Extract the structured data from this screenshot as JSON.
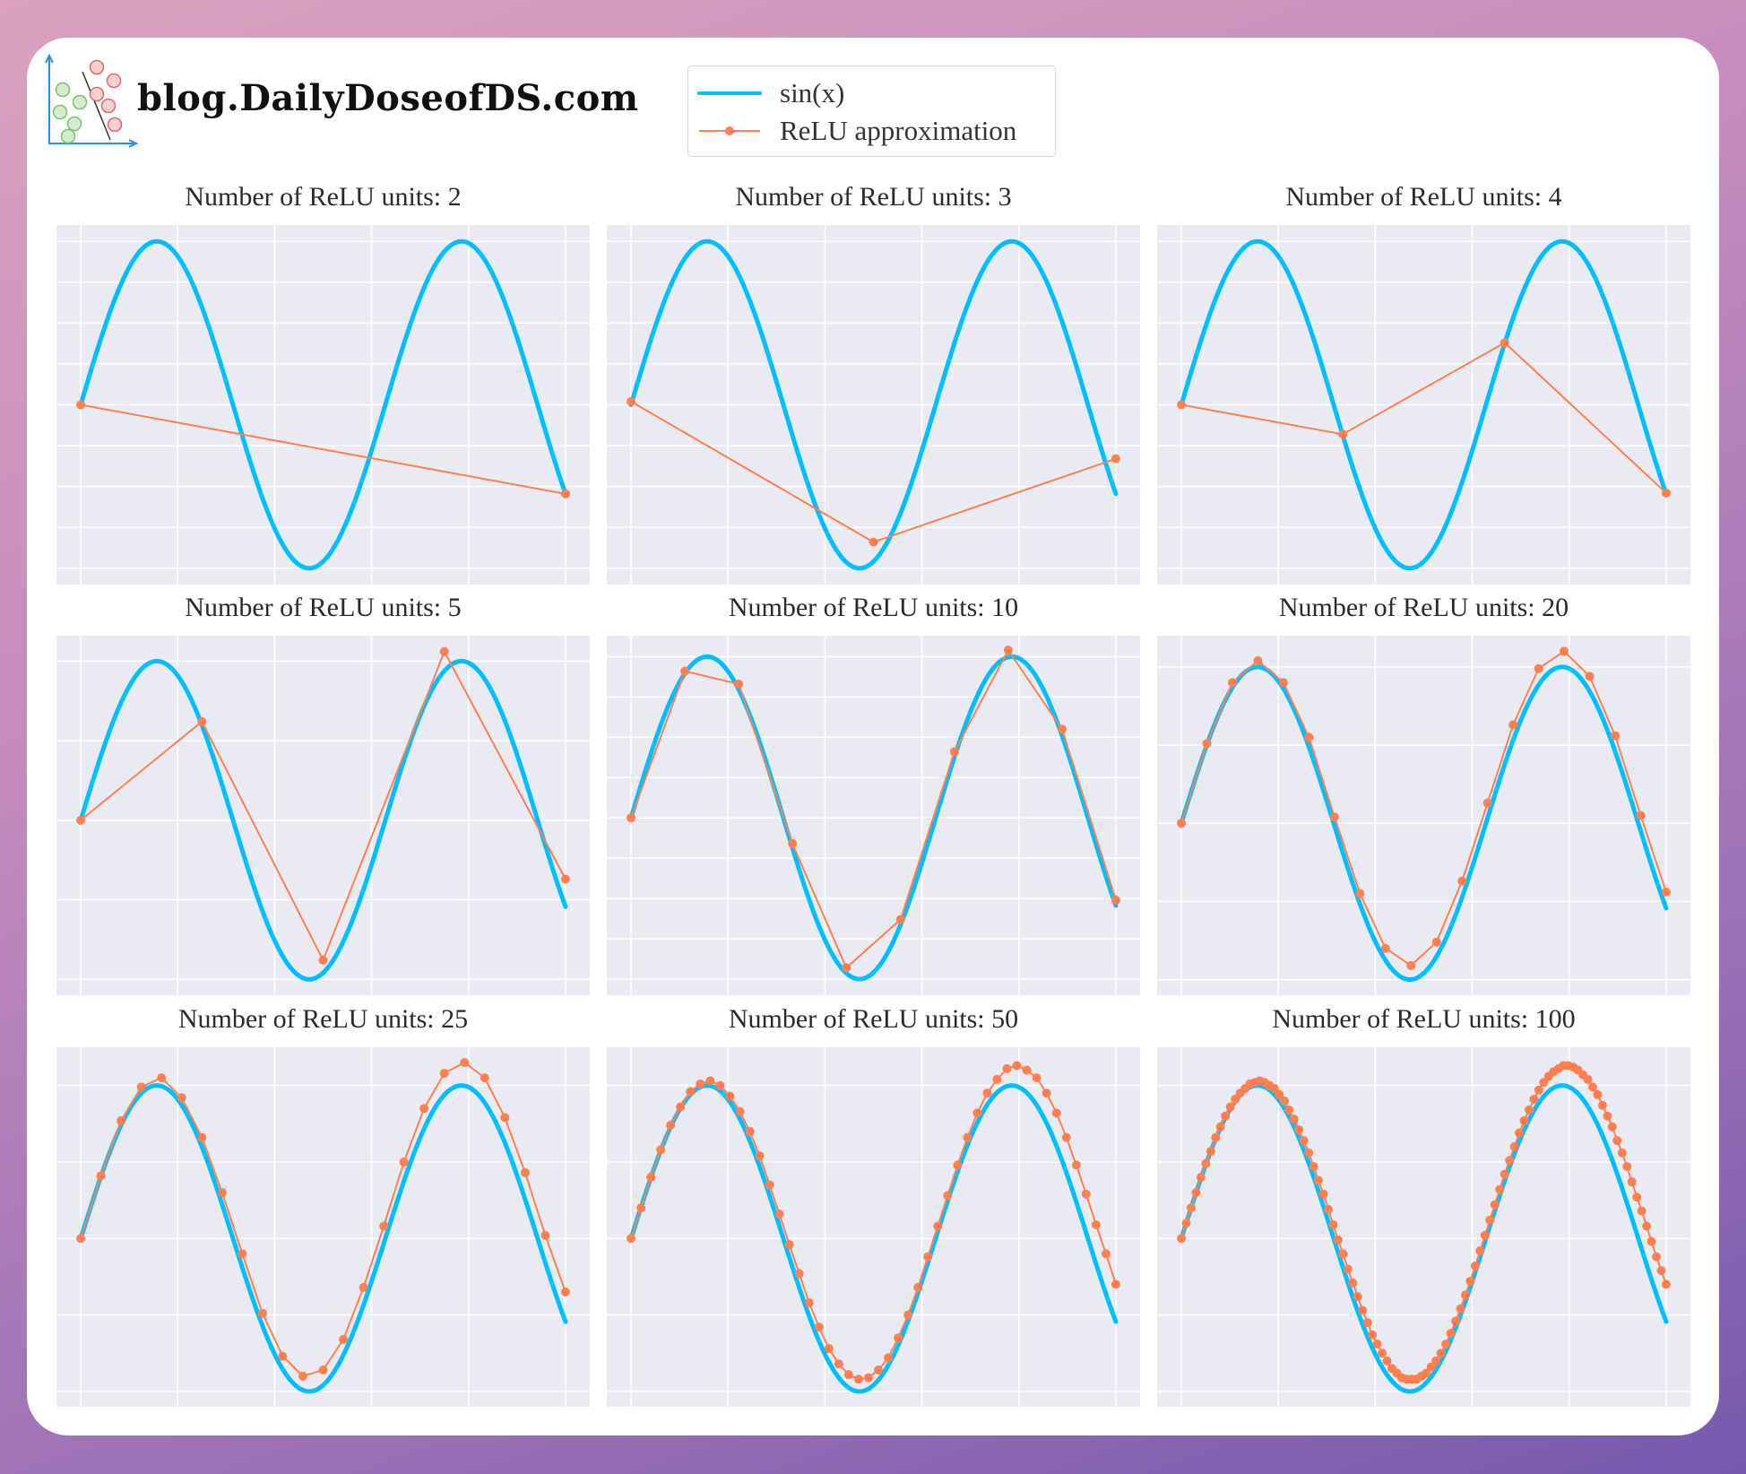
{
  "brand": {
    "text": "blog.DailyDoseofDS.com"
  },
  "legend": {
    "items": [
      {
        "label": "sin(x)",
        "color": "#00bfff",
        "style": "line"
      },
      {
        "label": "ReLU approximation",
        "color": "#ff7f50",
        "style": "line-marker"
      }
    ]
  },
  "colors": {
    "sine": "#00bfff",
    "relu": "#ff7f50",
    "plot_bg": "#eaeaf2",
    "grid": "#ffffff"
  },
  "chart_data": [
    {
      "type": "line",
      "title": "Number of ReLU units: 2",
      "units": 2,
      "xlim": [
        -0.5,
        10.5
      ],
      "ylim": [
        -1.1,
        1.1
      ],
      "yticks": [
        -1,
        -0.75,
        -0.5,
        -0.25,
        0,
        0.25,
        0.5,
        0.75,
        1
      ],
      "xticks": [
        0,
        2,
        4,
        6,
        8,
        10
      ],
      "series": [
        {
          "name": "sin(x)",
          "x_range": [
            0,
            10
          ]
        },
        {
          "name": "ReLU approximation",
          "x": [
            0,
            10
          ],
          "y": [
            0.0,
            -0.545
          ]
        }
      ]
    },
    {
      "type": "line",
      "title": "Number of ReLU units: 3",
      "units": 3,
      "xlim": [
        -0.5,
        10.5
      ],
      "ylim": [
        -1.1,
        1.1
      ],
      "yticks": [
        -1,
        -0.75,
        -0.5,
        -0.25,
        0,
        0.25,
        0.5,
        0.75,
        1
      ],
      "xticks": [
        0,
        2,
        4,
        6,
        8,
        10
      ],
      "series": [
        {
          "name": "sin(x)",
          "x_range": [
            0,
            10
          ]
        },
        {
          "name": "ReLU approximation",
          "x": [
            0,
            5,
            10
          ],
          "y": [
            0.02,
            -0.84,
            -0.33
          ]
        }
      ]
    },
    {
      "type": "line",
      "title": "Number of ReLU units: 4",
      "units": 4,
      "xlim": [
        -0.5,
        10.5
      ],
      "ylim": [
        -1.1,
        1.1
      ],
      "yticks": [
        -1,
        -0.75,
        -0.5,
        -0.25,
        0,
        0.25,
        0.5,
        0.75,
        1
      ],
      "xticks": [
        0,
        2,
        4,
        6,
        8,
        10
      ],
      "series": [
        {
          "name": "sin(x)",
          "x_range": [
            0,
            10
          ]
        },
        {
          "name": "ReLU approximation",
          "x": [
            0,
            3.33,
            6.67,
            10
          ],
          "y": [
            0.0,
            -0.18,
            0.38,
            -0.54
          ]
        }
      ]
    },
    {
      "type": "line",
      "title": "Number of ReLU units: 5",
      "units": 5,
      "xlim": [
        -0.5,
        10.5
      ],
      "ylim": [
        -1.1,
        1.16
      ],
      "yticks": [
        -1,
        -0.5,
        0,
        0.5,
        1
      ],
      "xticks": [
        0,
        2,
        4,
        6,
        8,
        10
      ],
      "series": [
        {
          "name": "sin(x)",
          "x_range": [
            0,
            10
          ]
        },
        {
          "name": "ReLU approximation",
          "x": [
            0,
            2.5,
            5,
            7.5,
            10
          ],
          "y": [
            0.0,
            0.62,
            -0.88,
            1.06,
            -0.37
          ]
        }
      ]
    },
    {
      "type": "line",
      "title": "Number of ReLU units: 10",
      "units": 10,
      "xlim": [
        -0.5,
        10.5
      ],
      "ylim": [
        -1.1,
        1.13
      ],
      "yticks": [
        -1,
        -0.75,
        -0.5,
        -0.25,
        0,
        0.25,
        0.5,
        0.75,
        1
      ],
      "xticks": [
        0,
        2,
        4,
        6,
        8,
        10
      ],
      "series": [
        {
          "name": "sin(x)",
          "x_range": [
            0,
            10
          ]
        },
        {
          "name": "ReLU approximation",
          "x": [
            0,
            1.11,
            2.22,
            3.33,
            4.44,
            5.56,
            6.67,
            7.78,
            8.89,
            10
          ],
          "y": [
            0.0,
            0.91,
            0.83,
            -0.16,
            -0.93,
            -0.63,
            0.41,
            1.04,
            0.55,
            -0.51
          ]
        }
      ]
    },
    {
      "type": "line",
      "title": "Number of ReLU units: 20",
      "units": 20,
      "xlim": [
        -0.5,
        10.5
      ],
      "ylim": [
        -1.1,
        1.2
      ],
      "yticks": [
        -1,
        -0.5,
        0,
        0.5,
        1
      ],
      "xticks": [
        0,
        2,
        4,
        6,
        8,
        10
      ],
      "series": [
        {
          "name": "sin(x)",
          "x_range": [
            0,
            10
          ]
        },
        {
          "name": "ReLU approximation",
          "x_range": [
            0,
            10
          ],
          "y": [
            0.0,
            0.51,
            0.9,
            1.04,
            0.9,
            0.55,
            0.04,
            -0.45,
            -0.8,
            -0.91,
            -0.76,
            -0.37,
            0.13,
            0.63,
            0.99,
            1.1,
            0.94,
            0.56,
            0.05,
            -0.44
          ]
        }
      ]
    },
    {
      "type": "line",
      "title": "Number of ReLU units: 25",
      "units": 25,
      "xlim": [
        -0.5,
        10.5
      ],
      "ylim": [
        -1.1,
        1.25
      ],
      "yticks": [
        -1,
        -0.5,
        0,
        0.5,
        1
      ],
      "xticks": [
        0,
        2,
        4,
        6,
        8,
        10
      ],
      "series": [
        {
          "name": "sin(x)",
          "x_range": [
            0,
            10
          ]
        },
        {
          "name": "ReLU approximation",
          "x_range": [
            0,
            10
          ],
          "y": [
            0.0,
            0.41,
            0.77,
            0.99,
            1.05,
            0.92,
            0.66,
            0.3,
            -0.1,
            -0.49,
            -0.77,
            -0.9,
            -0.86,
            -0.66,
            -0.32,
            0.08,
            0.5,
            0.85,
            1.08,
            1.15,
            1.05,
            0.79,
            0.43,
            0.02,
            -0.35
          ]
        }
      ]
    },
    {
      "type": "line",
      "title": "Number of ReLU units: 50",
      "units": 50,
      "xlim": [
        -0.5,
        10.5
      ],
      "ylim": [
        -1.1,
        1.25
      ],
      "yticks": [
        -1,
        -0.5,
        0,
        0.5,
        1
      ],
      "xticks": [
        0,
        2,
        4,
        6,
        8,
        10
      ],
      "series": [
        {
          "name": "sin(x)",
          "x_range": [
            0,
            10
          ]
        },
        {
          "name": "ReLU approximation",
          "x_range": [
            0,
            10
          ],
          "y": [
            0.0,
            0.2,
            0.4,
            0.58,
            0.74,
            0.86,
            0.96,
            1.01,
            1.03,
            1.0,
            0.93,
            0.83,
            0.7,
            0.54,
            0.35,
            0.16,
            -0.04,
            -0.23,
            -0.42,
            -0.58,
            -0.72,
            -0.82,
            -0.89,
            -0.92,
            -0.91,
            -0.86,
            -0.78,
            -0.65,
            -0.5,
            -0.32,
            -0.12,
            0.08,
            0.28,
            0.48,
            0.66,
            0.82,
            0.95,
            1.04,
            1.11,
            1.13,
            1.1,
            1.05,
            0.95,
            0.82,
            0.66,
            0.48,
            0.29,
            0.09,
            -0.1,
            -0.3
          ]
        }
      ]
    },
    {
      "type": "line",
      "title": "Number of ReLU units: 100",
      "units": 100,
      "xlim": [
        -0.5,
        10.5
      ],
      "ylim": [
        -1.1,
        1.25
      ],
      "yticks": [
        -1,
        -0.5,
        0,
        0.5,
        1
      ],
      "xticks": [
        0,
        2,
        4,
        6,
        8,
        10
      ],
      "series": [
        {
          "name": "sin(x)",
          "x_range": [
            0,
            10
          ]
        },
        {
          "name": "ReLU approximation",
          "x_range": [
            0,
            10
          ],
          "y": [
            0.0,
            0.1,
            0.2,
            0.3,
            0.4,
            0.49,
            0.57,
            0.66,
            0.73,
            0.8,
            0.86,
            0.91,
            0.95,
            0.98,
            1.01,
            1.02,
            1.03,
            1.02,
            1.0,
            0.98,
            0.94,
            0.9,
            0.84,
            0.78,
            0.71,
            0.64,
            0.56,
            0.47,
            0.38,
            0.29,
            0.19,
            0.09,
            -0.01,
            -0.1,
            -0.2,
            -0.29,
            -0.38,
            -0.47,
            -0.55,
            -0.63,
            -0.69,
            -0.75,
            -0.8,
            -0.85,
            -0.88,
            -0.91,
            -0.92,
            -0.92,
            -0.92,
            -0.9,
            -0.88,
            -0.84,
            -0.8,
            -0.75,
            -0.69,
            -0.62,
            -0.54,
            -0.46,
            -0.37,
            -0.28,
            -0.18,
            -0.08,
            0.02,
            0.12,
            0.22,
            0.32,
            0.42,
            0.51,
            0.6,
            0.69,
            0.77,
            0.84,
            0.91,
            0.97,
            1.02,
            1.06,
            1.09,
            1.11,
            1.13,
            1.13,
            1.12,
            1.1,
            1.07,
            1.04,
            0.99,
            0.94,
            0.87,
            0.8,
            0.73,
            0.64,
            0.56,
            0.47,
            0.37,
            0.27,
            0.18,
            0.08,
            -0.02,
            -0.12,
            -0.21,
            -0.3
          ]
        }
      ]
    }
  ]
}
